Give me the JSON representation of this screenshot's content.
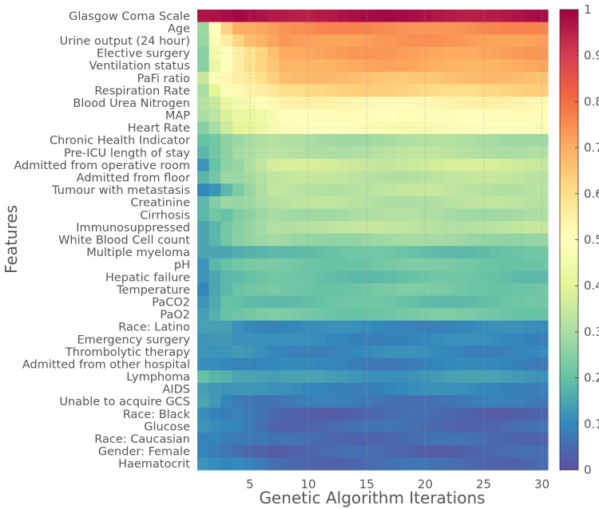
{
  "chart_data": {
    "type": "heatmap",
    "title": "",
    "xlabel": "Genetic Algorithm Iterations",
    "ylabel": "Features",
    "x": [
      1,
      2,
      3,
      4,
      5,
      6,
      7,
      8,
      9,
      10,
      11,
      12,
      13,
      14,
      15,
      16,
      17,
      18,
      19,
      20,
      21,
      22,
      23,
      24,
      25,
      26,
      27,
      28,
      29,
      30
    ],
    "x_ticks": [
      5,
      10,
      15,
      20,
      25,
      30
    ],
    "colorbar": {
      "range": [
        0,
        1
      ],
      "ticks": [
        "0",
        "0.1",
        "0.2",
        "0.3",
        "0.4",
        "0.5",
        "0.6",
        "0.7",
        "0.8",
        "0.9",
        "1"
      ],
      "colormap": "Spectral_r"
    },
    "grid": true,
    "rows": [
      {
        "name": "Glasgow Coma Scale",
        "start": [
          0.97,
          0.97,
          0.98
        ],
        "end": 0.97
      },
      {
        "name": "Age",
        "start": [
          0.28,
          0.5,
          0.62,
          0.7
        ],
        "end": 0.75
      },
      {
        "name": "Urine output (24 hour)",
        "start": [
          0.27,
          0.48,
          0.55,
          0.62
        ],
        "end": 0.73
      },
      {
        "name": "Elective surgery",
        "start": [
          0.25,
          0.45,
          0.5,
          0.55
        ],
        "end": 0.72
      },
      {
        "name": "Ventilation status",
        "start": [
          0.25,
          0.42,
          0.5,
          0.55
        ],
        "end": 0.7
      },
      {
        "name": "PaFi ratio",
        "start": [
          0.35,
          0.48,
          0.52,
          0.55
        ],
        "end": 0.66
      },
      {
        "name": "Respiration Rate",
        "start": [
          0.3,
          0.4,
          0.48,
          0.52
        ],
        "end": 0.62
      },
      {
        "name": "Blood Urea Nitrogen",
        "start": [
          0.32,
          0.35,
          0.42,
          0.45
        ],
        "end": 0.53
      },
      {
        "name": "MAP",
        "start": [
          0.3,
          0.33,
          0.38,
          0.42
        ],
        "end": 0.5
      },
      {
        "name": "Heart Rate",
        "start": [
          0.25,
          0.3,
          0.36,
          0.4
        ],
        "end": 0.48
      },
      {
        "name": "Chronic Health Indicator",
        "start": [
          0.2,
          0.22,
          0.26
        ],
        "end": 0.3
      },
      {
        "name": "Pre-ICU length of stay",
        "start": [
          0.18,
          0.22,
          0.26
        ],
        "end": 0.32
      },
      {
        "name": "Admitted from operative room",
        "start": [
          0.12,
          0.2,
          0.26
        ],
        "end": 0.36
      },
      {
        "name": "Admitted from floor",
        "start": [
          0.18,
          0.22,
          0.28
        ],
        "end": 0.33
      },
      {
        "name": "Tumour with metastasis",
        "start": [
          0.1,
          0.12,
          0.18
        ],
        "end": 0.33
      },
      {
        "name": "Creatinine",
        "start": [
          0.18,
          0.24,
          0.28
        ],
        "end": 0.32
      },
      {
        "name": "Cirrhosis",
        "start": [
          0.18,
          0.22,
          0.2
        ],
        "end": 0.3
      },
      {
        "name": "Immunosuppressed",
        "start": [
          0.15,
          0.18,
          0.22
        ],
        "end": 0.33
      },
      {
        "name": "White Blood Cell count",
        "start": [
          0.15,
          0.18,
          0.22
        ],
        "end": 0.28
      },
      {
        "name": "Multiple myeloma",
        "start": [
          0.15,
          0.15,
          0.15
        ],
        "end": 0.2
      },
      {
        "name": "pH",
        "start": [
          0.12,
          0.18,
          0.2
        ],
        "end": 0.22
      },
      {
        "name": "Hepatic failure",
        "start": [
          0.12,
          0.15,
          0.18
        ],
        "end": 0.2
      },
      {
        "name": "Temperature",
        "start": [
          0.1,
          0.15,
          0.18
        ],
        "end": 0.22
      },
      {
        "name": "PaCO2",
        "start": [
          0.12,
          0.16,
          0.2
        ],
        "end": 0.2
      },
      {
        "name": "PaO2",
        "start": [
          0.14,
          0.17,
          0.2
        ],
        "end": 0.22
      },
      {
        "name": "Race: Latino",
        "start": [
          0.14,
          0.14,
          0.14
        ],
        "end": 0.1
      },
      {
        "name": "Emergency surgery",
        "start": [
          0.12,
          0.13,
          0.13
        ],
        "end": 0.1
      },
      {
        "name": "Thrombolytic therapy",
        "start": [
          0.12,
          0.12,
          0.12
        ],
        "end": 0.1
      },
      {
        "name": "Admitted from other hospital",
        "start": [
          0.11,
          0.11,
          0.1
        ],
        "end": 0.09
      },
      {
        "name": "Lymphoma",
        "start": [
          0.2,
          0.18,
          0.17
        ],
        "end": 0.13
      },
      {
        "name": "AIDS",
        "start": [
          0.14,
          0.13,
          0.12
        ],
        "end": 0.1
      },
      {
        "name": "Unable to acquire GCS",
        "start": [
          0.15,
          0.13,
          0.1
        ],
        "end": 0.07
      },
      {
        "name": "Race: Black",
        "start": [
          0.11,
          0.09,
          0.08
        ],
        "end": 0.04
      },
      {
        "name": "Glucose",
        "start": [
          0.12,
          0.11,
          0.1
        ],
        "end": 0.05
      },
      {
        "name": "Race: Caucasian",
        "start": [
          0.09,
          0.09,
          0.08
        ],
        "end": 0.05
      },
      {
        "name": "Gender: Female",
        "start": [
          0.09,
          0.08,
          0.07
        ],
        "end": 0.04
      },
      {
        "name": "Haematocrit",
        "start": [
          0.12,
          0.11,
          0.1
        ],
        "end": 0.05
      }
    ]
  }
}
